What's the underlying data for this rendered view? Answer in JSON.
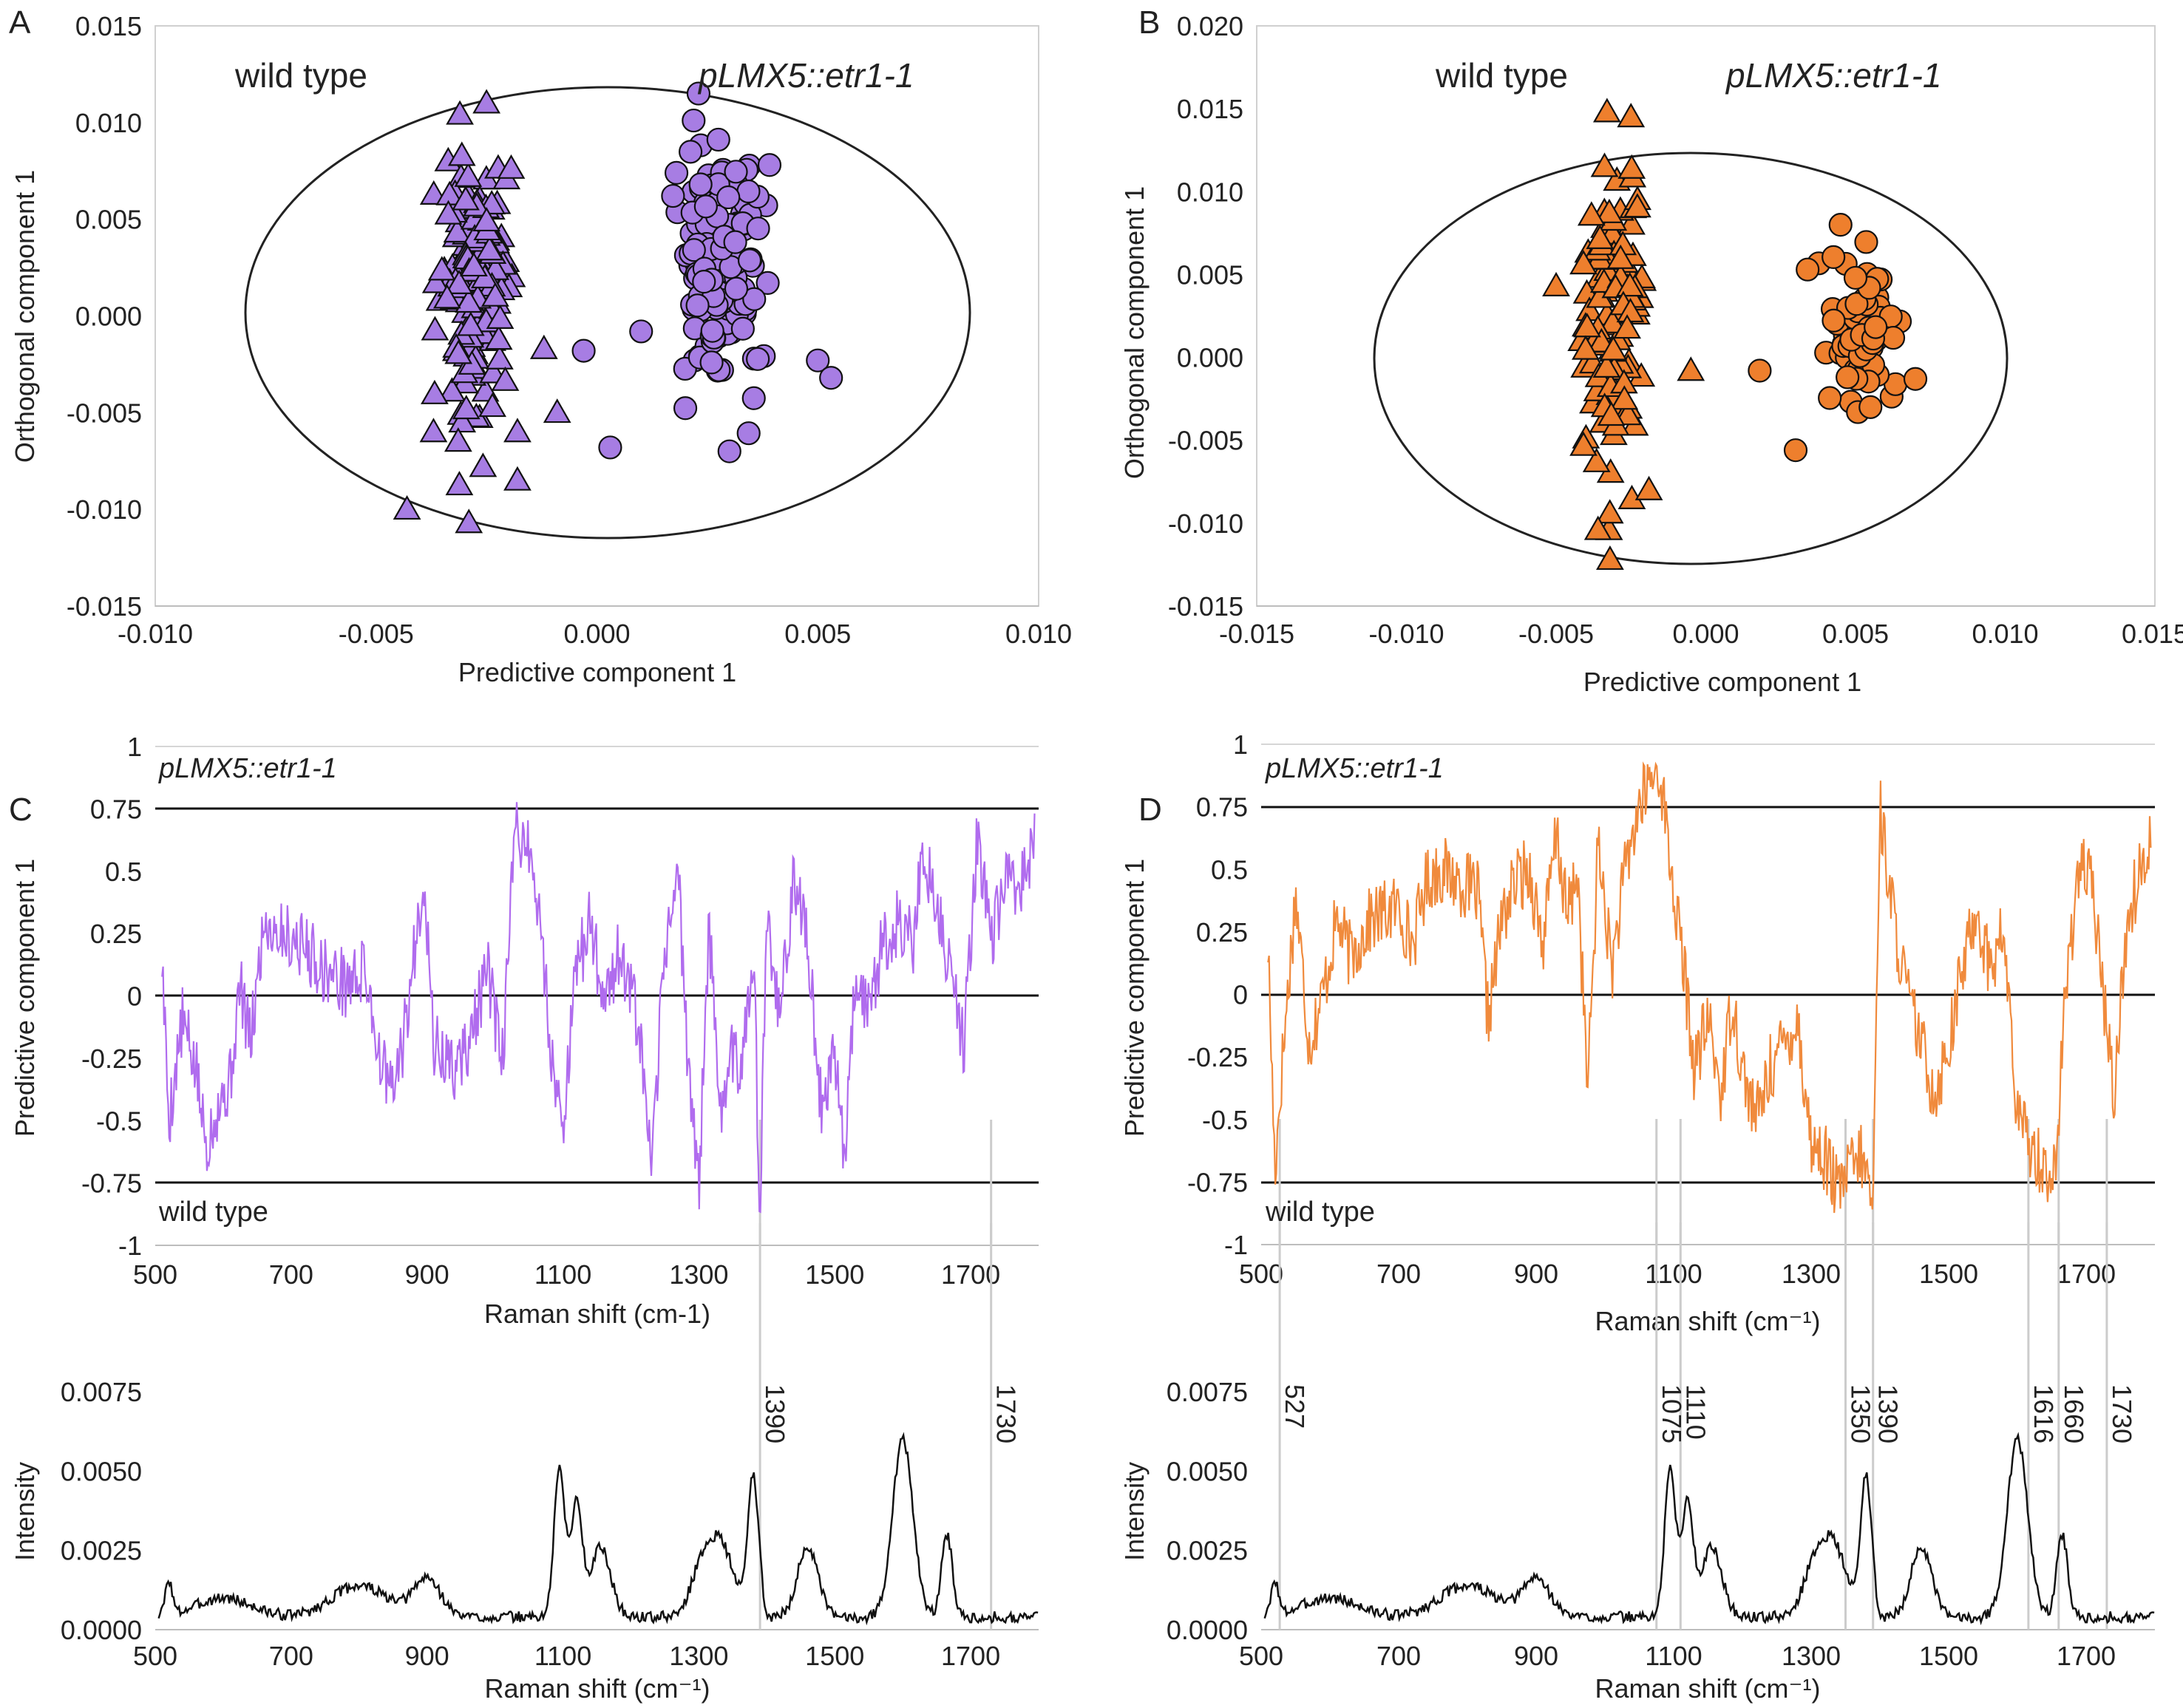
{
  "chart_data": [
    {
      "panel": "A",
      "type": "scatter",
      "xlabel": "Predictive component 1",
      "ylabel": "Orthogonal component 1",
      "xlim": [
        -0.01,
        0.01
      ],
      "ylim": [
        -0.015,
        0.015
      ],
      "xticks": [
        "-0.010",
        "-0.005",
        "0.000",
        "0.005",
        "0.010"
      ],
      "yticks": [
        "0.015",
        "0.010",
        "0.005",
        "0.000",
        "-0.005",
        "-0.010",
        "-0.015"
      ],
      "labels": {
        "left": "wild type",
        "right": "pLMX5::etr1-1"
      },
      "ellipse": {
        "center": [
          0.0,
          0.0
        ],
        "rx": 0.0081,
        "ry": 0.0115
      },
      "color": "#a77de3",
      "series": [
        {
          "name": "wild type",
          "marker": "triangle",
          "x_mean": -0.0028,
          "x_sd": 0.0006,
          "y_min": -0.01,
          "y_max": 0.0112,
          "n": 170,
          "points": [
            [
              -0.0043,
              -0.01
            ],
            [
              -0.0029,
              -0.0107
            ],
            [
              -0.0025,
              0.011
            ],
            [
              -0.0018,
              -0.006
            ],
            [
              -0.0012,
              -0.0017
            ],
            [
              -0.0009,
              -0.005
            ],
            [
              -0.0018,
              -0.0085
            ],
            [
              -0.0037,
              -0.006
            ]
          ]
        },
        {
          "name": "pLMX5::etr1-1",
          "marker": "circle",
          "x_mean": 0.0028,
          "x_sd": 0.0007,
          "y_min": -0.0078,
          "y_max": 0.0115,
          "n": 160,
          "points": [
            [
              0.0023,
              0.0115
            ],
            [
              -0.0003,
              -0.0018
            ],
            [
              0.001,
              -0.0008
            ],
            [
              0.0003,
              -0.0068
            ],
            [
              0.005,
              -0.0023
            ],
            [
              0.0053,
              -0.0032
            ],
            [
              0.003,
              -0.007
            ],
            [
              0.0018,
              0.0074
            ]
          ]
        }
      ]
    },
    {
      "panel": "B",
      "type": "scatter",
      "xlabel": "Predictive component 1",
      "ylabel": "Orthogonal component 1",
      "xlim": [
        -0.015,
        0.015
      ],
      "ylim": [
        -0.015,
        0.02
      ],
      "xticks": [
        "-0.015",
        "-0.010",
        "0.000",
        "0.005",
        "0.010",
        "0.015"
      ],
      "xtick_values": [
        -0.015,
        -0.01,
        0.0,
        0.005,
        0.01,
        0.015
      ],
      "xtick_extra": {
        "label": "-0.005",
        "value": -0.005
      },
      "yticks": [
        "0.020",
        "0.015",
        "0.010",
        "0.005",
        "0.000",
        "-0.005",
        "-0.010",
        "-0.015"
      ],
      "labels": {
        "left": "wild type",
        "right": "pLMX5::etr1-1"
      },
      "ellipse": {
        "center": [
          -0.0005,
          0.0
        ],
        "rx": 0.0106,
        "ry": 0.0124
      },
      "color": "#ee7f2d",
      "series": [
        {
          "name": "wild type",
          "marker": "triangle",
          "x_mean": -0.0031,
          "x_sd": 0.0007,
          "y_min": -0.0122,
          "y_max": 0.0148,
          "n": 120,
          "points": [
            [
              -0.0032,
              -0.0122
            ],
            [
              -0.0033,
              0.0148
            ],
            [
              -0.0025,
              0.0145
            ],
            [
              -0.0005,
              -0.0008
            ],
            [
              -0.005,
              0.0043
            ],
            [
              -0.0036,
              -0.0104
            ],
            [
              -0.0019,
              -0.008
            ]
          ]
        },
        {
          "name": "pLMX5::etr1-1",
          "marker": "circle",
          "x_mean": 0.0052,
          "x_sd": 0.0009,
          "y_min": -0.0056,
          "y_max": 0.008,
          "n": 70,
          "points": [
            [
              0.0018,
              -0.0008
            ],
            [
              0.003,
              -0.0056
            ],
            [
              0.0045,
              0.008
            ],
            [
              0.0034,
              0.0053
            ],
            [
              0.007,
              -0.0013
            ],
            [
              0.005,
              0.0048
            ],
            [
              0.0055,
              -0.003
            ]
          ]
        }
      ]
    },
    {
      "panel": "C",
      "type": "line",
      "xlabel": "Raman shift (cm-1)",
      "ylabel": "Predictive component 1",
      "xlim": [
        500,
        1800
      ],
      "ylim": [
        -1,
        1
      ],
      "xticks": [
        "500",
        "700",
        "900",
        "1100",
        "1300",
        "1500",
        "1700"
      ],
      "yticks": [
        "1",
        "0.75",
        "0.5",
        "0.25",
        "0",
        "-0.25",
        "-0.5",
        "-0.75",
        "-1"
      ],
      "threshold": 0.75,
      "label_top": "pLMX5::etr1-1",
      "label_bottom": "wild type",
      "color": "#b06cee",
      "anchors": [
        [
          510,
          0.15
        ],
        [
          520,
          -0.5
        ],
        [
          540,
          -0.1
        ],
        [
          560,
          -0.3
        ],
        [
          575,
          -0.6
        ],
        [
          590,
          -0.45
        ],
        [
          610,
          -0.35
        ],
        [
          625,
          0.05
        ],
        [
          640,
          -0.2
        ],
        [
          660,
          0.3
        ],
        [
          690,
          0.25
        ],
        [
          720,
          0.2
        ],
        [
          750,
          0.1
        ],
        [
          780,
          0.05
        ],
        [
          810,
          0.1
        ],
        [
          830,
          -0.25
        ],
        [
          850,
          -0.4
        ],
        [
          870,
          -0.1
        ],
        [
          895,
          0.5
        ],
        [
          910,
          -0.2
        ],
        [
          940,
          -0.3
        ],
        [
          960,
          -0.2
        ],
        [
          990,
          0.1
        ],
        [
          1010,
          -0.3
        ],
        [
          1030,
          0.68
        ],
        [
          1050,
          0.6
        ],
        [
          1070,
          0.2
        ],
        [
          1085,
          -0.3
        ],
        [
          1100,
          -0.5
        ],
        [
          1120,
          0.1
        ],
        [
          1140,
          0.3
        ],
        [
          1160,
          0.0
        ],
        [
          1180,
          0.15
        ],
        [
          1200,
          0.05
        ],
        [
          1220,
          -0.35
        ],
        [
          1230,
          -0.75
        ],
        [
          1250,
          0.2
        ],
        [
          1270,
          0.5
        ],
        [
          1280,
          -0.1
        ],
        [
          1300,
          -0.78
        ],
        [
          1315,
          0.3
        ],
        [
          1330,
          -0.5
        ],
        [
          1345,
          -0.2
        ],
        [
          1360,
          -0.3
        ],
        [
          1380,
          0.2
        ],
        [
          1390,
          -0.88
        ],
        [
          1400,
          0.3
        ],
        [
          1420,
          -0.1
        ],
        [
          1440,
          0.5
        ],
        [
          1460,
          0.2
        ],
        [
          1480,
          -0.45
        ],
        [
          1500,
          -0.2
        ],
        [
          1515,
          -0.65
        ],
        [
          1530,
          0.1
        ],
        [
          1550,
          -0.05
        ],
        [
          1570,
          0.2
        ],
        [
          1595,
          0.3
        ],
        [
          1615,
          0.2
        ],
        [
          1630,
          0.6
        ],
        [
          1650,
          0.35
        ],
        [
          1670,
          0.1
        ],
        [
          1690,
          -0.2
        ],
        [
          1710,
          0.66
        ],
        [
          1730,
          0.2
        ],
        [
          1750,
          0.45
        ],
        [
          1770,
          0.4
        ],
        [
          1790,
          0.6
        ]
      ]
    },
    {
      "panel": "D",
      "type": "line",
      "xlabel": "Raman shift (cm⁻¹)",
      "ylabel": "Predictive component 1",
      "xlim": [
        500,
        1800
      ],
      "ylim": [
        -1,
        1
      ],
      "xticks": [
        "500",
        "700",
        "900",
        "1100",
        "1300",
        "1500",
        "1700"
      ],
      "yticks": [
        "1",
        "0.75",
        "0.5",
        "0.25",
        "0",
        "-0.25",
        "-0.5",
        "-0.75",
        "-1"
      ],
      "threshold": 0.75,
      "label_top": "pLMX5::etr1-1",
      "label_bottom": "wild type",
      "color": "#f08a3c",
      "anchors": [
        [
          510,
          0.2
        ],
        [
          520,
          -0.7
        ],
        [
          530,
          -0.3
        ],
        [
          550,
          0.4
        ],
        [
          570,
          -0.2
        ],
        [
          590,
          0.0
        ],
        [
          610,
          0.3
        ],
        [
          630,
          0.15
        ],
        [
          660,
          0.3
        ],
        [
          700,
          0.35
        ],
        [
          720,
          0.2
        ],
        [
          740,
          0.45
        ],
        [
          760,
          0.5
        ],
        [
          790,
          0.45
        ],
        [
          815,
          0.4
        ],
        [
          830,
          -0.1
        ],
        [
          850,
          0.3
        ],
        [
          870,
          0.45
        ],
        [
          890,
          0.5
        ],
        [
          910,
          0.2
        ],
        [
          930,
          0.65
        ],
        [
          945,
          0.3
        ],
        [
          960,
          0.5
        ],
        [
          975,
          -0.4
        ],
        [
          990,
          0.6
        ],
        [
          1010,
          0.1
        ],
        [
          1030,
          0.5
        ],
        [
          1050,
          0.75
        ],
        [
          1065,
          0.85
        ],
        [
          1080,
          0.9
        ],
        [
          1100,
          0.4
        ],
        [
          1115,
          0.1
        ],
        [
          1130,
          -0.3
        ],
        [
          1150,
          -0.1
        ],
        [
          1170,
          -0.4
        ],
        [
          1185,
          0.0
        ],
        [
          1200,
          -0.3
        ],
        [
          1220,
          -0.5
        ],
        [
          1240,
          -0.3
        ],
        [
          1260,
          -0.2
        ],
        [
          1280,
          -0.1
        ],
        [
          1300,
          -0.6
        ],
        [
          1320,
          -0.65
        ],
        [
          1340,
          -0.8
        ],
        [
          1355,
          -0.7
        ],
        [
          1375,
          -0.65
        ],
        [
          1390,
          -0.85
        ],
        [
          1400,
          0.75
        ],
        [
          1420,
          0.3
        ],
        [
          1440,
          0.0
        ],
        [
          1460,
          -0.2
        ],
        [
          1480,
          -0.4
        ],
        [
          1500,
          -0.2
        ],
        [
          1520,
          0.1
        ],
        [
          1540,
          0.35
        ],
        [
          1560,
          0.1
        ],
        [
          1580,
          0.25
        ],
        [
          1600,
          -0.5
        ],
        [
          1620,
          -0.6
        ],
        [
          1640,
          -0.7
        ],
        [
          1655,
          -0.72
        ],
        [
          1670,
          0.0
        ],
        [
          1690,
          0.55
        ],
        [
          1710,
          0.4
        ],
        [
          1725,
          0.0
        ],
        [
          1740,
          -0.4
        ],
        [
          1760,
          0.3
        ],
        [
          1780,
          0.5
        ],
        [
          1795,
          0.65
        ]
      ]
    },
    {
      "panel": "C-spectrum",
      "type": "line",
      "xlabel": "Raman shift (cm⁻¹)",
      "ylabel": "Intensity",
      "xlim": [
        500,
        1800
      ],
      "ylim": [
        0,
        0.0075
      ],
      "xticks": [
        "500",
        "700",
        "900",
        "1100",
        "1300",
        "1500",
        "1700"
      ],
      "yticks": [
        "0.0075",
        "0.0050",
        "0.0025",
        "0.0000"
      ],
      "markers": [
        "1390",
        "1730"
      ],
      "marker_values": [
        1390,
        1730
      ],
      "peaks": [
        [
          520,
          0.0011,
          5
        ],
        [
          600,
          0.0006,
          40
        ],
        [
          800,
          0.001,
          40
        ],
        [
          900,
          0.0012,
          20
        ],
        [
          1095,
          0.0047,
          8
        ],
        [
          1120,
          0.0036,
          8
        ],
        [
          1155,
          0.0022,
          15
        ],
        [
          1300,
          0.001,
          15
        ],
        [
          1330,
          0.0024,
          20
        ],
        [
          1380,
          0.0044,
          8
        ],
        [
          1460,
          0.0022,
          15
        ],
        [
          1600,
          0.0056,
          15
        ],
        [
          1665,
          0.0026,
          8
        ]
      ]
    },
    {
      "panel": "D-spectrum",
      "type": "line",
      "xlabel": "Raman shift (cm⁻¹)",
      "ylabel": "Intensity",
      "xlim": [
        500,
        1800
      ],
      "ylim": [
        0,
        0.0075
      ],
      "xticks": [
        "500",
        "700",
        "900",
        "1100",
        "1300",
        "1500",
        "1700"
      ],
      "yticks": [
        "0.0075",
        "0.0050",
        "0.0025",
        "0.0000"
      ],
      "markers": [
        "527",
        "1075",
        "1110",
        "1350",
        "1390",
        "1616",
        "1660",
        "1730"
      ],
      "marker_values": [
        527,
        1075,
        1110,
        1350,
        1390,
        1616,
        1660,
        1730
      ],
      "peaks": [
        [
          520,
          0.0011,
          5
        ],
        [
          600,
          0.0006,
          40
        ],
        [
          800,
          0.001,
          40
        ],
        [
          900,
          0.0012,
          20
        ],
        [
          1095,
          0.0047,
          8
        ],
        [
          1120,
          0.0036,
          8
        ],
        [
          1155,
          0.0022,
          15
        ],
        [
          1300,
          0.001,
          15
        ],
        [
          1330,
          0.0024,
          20
        ],
        [
          1380,
          0.0044,
          8
        ],
        [
          1460,
          0.0022,
          15
        ],
        [
          1600,
          0.0056,
          15
        ],
        [
          1665,
          0.0026,
          8
        ]
      ]
    }
  ],
  "panel_letters": [
    "A",
    "B",
    "C",
    "D"
  ]
}
